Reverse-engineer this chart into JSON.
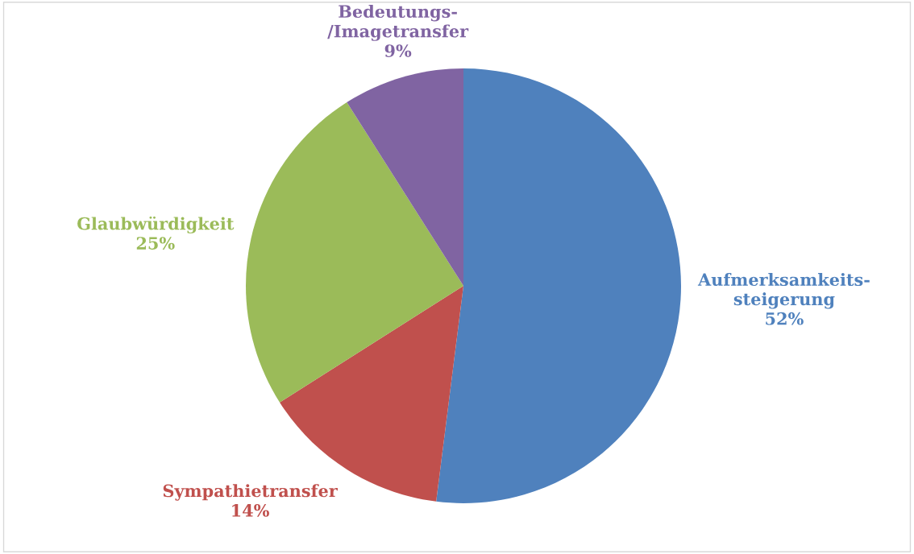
{
  "chart_data": {
    "type": "pie",
    "categories": [
      "Aufmerksamkeits-\nsteigerung",
      "Sympathietransfer",
      "Glaubwürdigkeit",
      "Bedeutungs-\n/Imagetransfer"
    ],
    "values": [
      52,
      14,
      25,
      9
    ],
    "value_labels": [
      "52%",
      "14%",
      "25%",
      "9%"
    ],
    "colors": [
      "#4f81bd",
      "#c0504d",
      "#9bbb59",
      "#8064a2"
    ],
    "legend": false
  }
}
